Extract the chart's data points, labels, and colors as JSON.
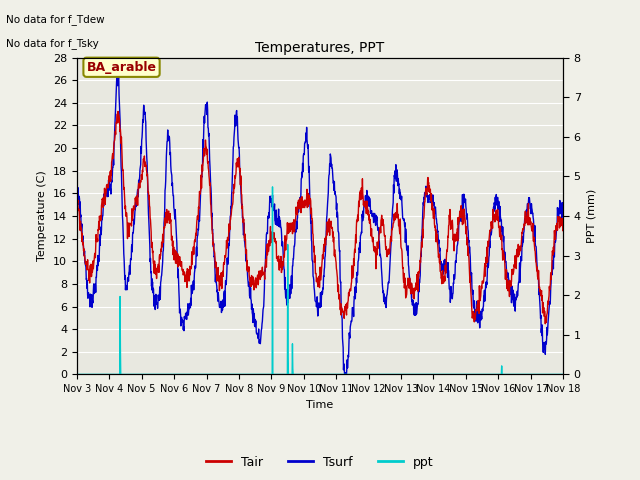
{
  "title": "Temperatures, PPT",
  "xlabel": "Time",
  "ylabel_left": "Temperature (C)",
  "ylabel_right": "PPT (mm)",
  "text_no_data_1": "No data for f_Tdew",
  "text_no_data_2": "No data for f_Tsky",
  "location_label": "BA_arable",
  "ylim_left": [
    0,
    28
  ],
  "ylim_right": [
    0.0,
    8.0
  ],
  "yticks_left": [
    0,
    2,
    4,
    6,
    8,
    10,
    12,
    14,
    16,
    18,
    20,
    22,
    24,
    26,
    28
  ],
  "yticks_right": [
    0.0,
    1.0,
    2.0,
    3.0,
    4.0,
    5.0,
    6.0,
    7.0,
    8.0
  ],
  "xtick_labels": [
    "Nov 3",
    "Nov 4",
    "Nov 5",
    "Nov 6",
    "Nov 7",
    "Nov 8",
    "Nov 9",
    "Nov 10",
    "Nov 11",
    "Nov 12",
    "Nov 13",
    "Nov 14",
    "Nov 15",
    "Nov 16",
    "Nov 17",
    "Nov 18"
  ],
  "color_tair": "#cc0000",
  "color_tsurf": "#0000cc",
  "color_ppt": "#00cccc",
  "fig_facecolor": "#f0f0e8",
  "axes_facecolor": "#e8e8e0",
  "linewidth_temp": 1.0,
  "linewidth_ppt": 1.0,
  "legend_labels": [
    "Tair",
    "Tsurf",
    "ppt"
  ],
  "legend_colors": [
    "#cc0000",
    "#0000cc",
    "#00cccc"
  ],
  "n_days": 15,
  "figsize": [
    6.4,
    4.8
  ],
  "dpi": 100
}
